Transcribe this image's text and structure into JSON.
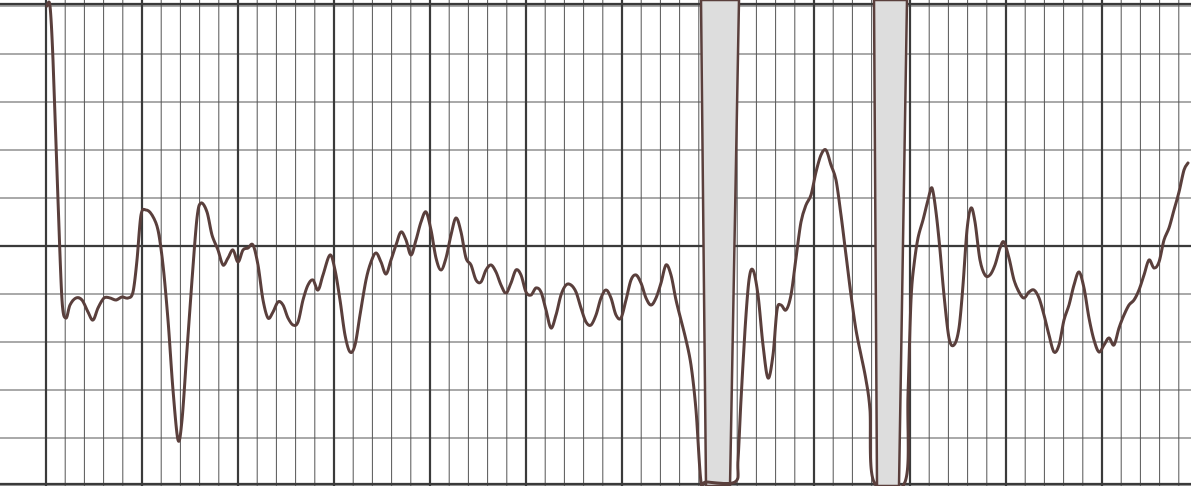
{
  "strip": {
    "paper_color": "#ffffff",
    "grid_major_color": "#3a3a3a",
    "grid_minor_color": "#555555",
    "trace_color": "#5a3f3c",
    "spike_fill_color": "#dddddd"
  }
}
